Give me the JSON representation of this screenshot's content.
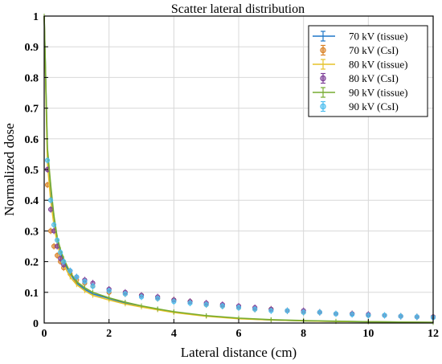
{
  "chart_data": {
    "type": "scatter",
    "title": "Scatter lateral distribution",
    "xlabel": "Lateral distance (cm)",
    "ylabel": "Normalized dose",
    "xlim": [
      0,
      12
    ],
    "ylim": [
      0,
      1
    ],
    "xticks": [
      "0",
      "2",
      "4",
      "6",
      "8",
      "10",
      "12"
    ],
    "yticks": [
      "0",
      "0.1",
      "0.2",
      "0.3",
      "0.4",
      "0.5",
      "0.6",
      "0.7",
      "0.8",
      "0.9",
      "1"
    ],
    "grid": true,
    "legend_position": "top-right",
    "series": [
      {
        "name": "70 kV (tissue)",
        "kind": "tissue",
        "color": "#1f77c8",
        "x": [
          0,
          0.1,
          0.2,
          0.3,
          0.4,
          0.5,
          0.6,
          0.8,
          1.0,
          1.25,
          1.5,
          2,
          2.5,
          3,
          3.5,
          4,
          5,
          6,
          7,
          8,
          9,
          10,
          12
        ],
        "y": [
          1,
          0.55,
          0.42,
          0.33,
          0.27,
          0.23,
          0.2,
          0.16,
          0.13,
          0.11,
          0.095,
          0.08,
          0.065,
          0.055,
          0.045,
          0.035,
          0.023,
          0.015,
          0.01,
          0.007,
          0.005,
          0.004,
          0.002
        ]
      },
      {
        "name": "70 kV (CsI)",
        "kind": "csi",
        "color": "#d98226",
        "x": [
          0.1,
          0.2,
          0.3,
          0.4,
          0.5,
          0.6,
          0.8,
          1.0,
          1.25,
          1.5,
          2,
          2.5,
          3,
          3.5,
          4,
          4.5,
          5,
          5.5,
          6,
          6.5,
          7,
          7.5,
          8,
          8.5,
          9,
          9.5,
          10,
          10.5,
          11,
          11.5,
          12
        ],
        "y": [
          0.45,
          0.3,
          0.25,
          0.22,
          0.2,
          0.18,
          0.16,
          0.14,
          0.13,
          0.12,
          0.1,
          0.095,
          0.09,
          0.08,
          0.075,
          0.07,
          0.06,
          0.055,
          0.05,
          0.045,
          0.045,
          0.04,
          0.035,
          0.035,
          0.03,
          0.03,
          0.025,
          0.025,
          0.022,
          0.02,
          0.02
        ]
      },
      {
        "name": "80 kV (tissue)",
        "kind": "tissue",
        "color": "#e6c229",
        "x": [
          0,
          0.1,
          0.2,
          0.3,
          0.4,
          0.5,
          0.6,
          0.8,
          1.0,
          1.25,
          1.5,
          2,
          2.5,
          3,
          3.5,
          4,
          5,
          6,
          7,
          8,
          9,
          10,
          12
        ],
        "y": [
          1,
          0.52,
          0.4,
          0.32,
          0.26,
          0.22,
          0.19,
          0.15,
          0.125,
          0.105,
          0.09,
          0.075,
          0.062,
          0.052,
          0.043,
          0.034,
          0.022,
          0.014,
          0.01,
          0.007,
          0.005,
          0.004,
          0.002
        ]
      },
      {
        "name": "80 kV (CsI)",
        "kind": "csi",
        "color": "#7e3f98",
        "x": [
          0.1,
          0.2,
          0.3,
          0.4,
          0.5,
          0.6,
          0.8,
          1.0,
          1.25,
          1.5,
          2,
          2.5,
          3,
          3.5,
          4,
          4.5,
          5,
          5.5,
          6,
          6.5,
          7,
          7.5,
          8,
          8.5,
          9,
          9.5,
          10,
          10.5,
          11,
          11.5,
          12
        ],
        "y": [
          0.5,
          0.37,
          0.3,
          0.25,
          0.21,
          0.19,
          0.17,
          0.15,
          0.14,
          0.13,
          0.11,
          0.1,
          0.09,
          0.085,
          0.075,
          0.07,
          0.065,
          0.06,
          0.055,
          0.05,
          0.045,
          0.04,
          0.04,
          0.035,
          0.03,
          0.03,
          0.028,
          0.025,
          0.022,
          0.02,
          0.02
        ]
      },
      {
        "name": "90 kV (tissue)",
        "kind": "tissue",
        "color": "#77ac30",
        "x": [
          0,
          0.1,
          0.2,
          0.3,
          0.4,
          0.5,
          0.6,
          0.8,
          1.0,
          1.25,
          1.5,
          2,
          2.5,
          3,
          3.5,
          4,
          5,
          6,
          7,
          8,
          9,
          10,
          12
        ],
        "y": [
          1,
          0.57,
          0.45,
          0.35,
          0.28,
          0.24,
          0.21,
          0.165,
          0.135,
          0.115,
          0.1,
          0.082,
          0.068,
          0.056,
          0.046,
          0.037,
          0.024,
          0.016,
          0.011,
          0.008,
          0.006,
          0.004,
          0.002
        ]
      },
      {
        "name": "90 kV (CsI)",
        "kind": "csi",
        "color": "#4dbeee",
        "x": [
          0.1,
          0.2,
          0.3,
          0.4,
          0.5,
          0.6,
          0.8,
          1.0,
          1.25,
          1.5,
          2,
          2.5,
          3,
          3.5,
          4,
          4.5,
          5,
          5.5,
          6,
          6.5,
          7,
          7.5,
          8,
          8.5,
          9,
          9.5,
          10,
          10.5,
          11,
          11.5,
          12
        ],
        "y": [
          0.53,
          0.4,
          0.32,
          0.27,
          0.23,
          0.2,
          0.17,
          0.15,
          0.135,
          0.12,
          0.105,
          0.095,
          0.085,
          0.08,
          0.07,
          0.065,
          0.06,
          0.055,
          0.05,
          0.045,
          0.04,
          0.04,
          0.035,
          0.035,
          0.03,
          0.028,
          0.025,
          0.025,
          0.022,
          0.02,
          0.018
        ]
      }
    ]
  }
}
